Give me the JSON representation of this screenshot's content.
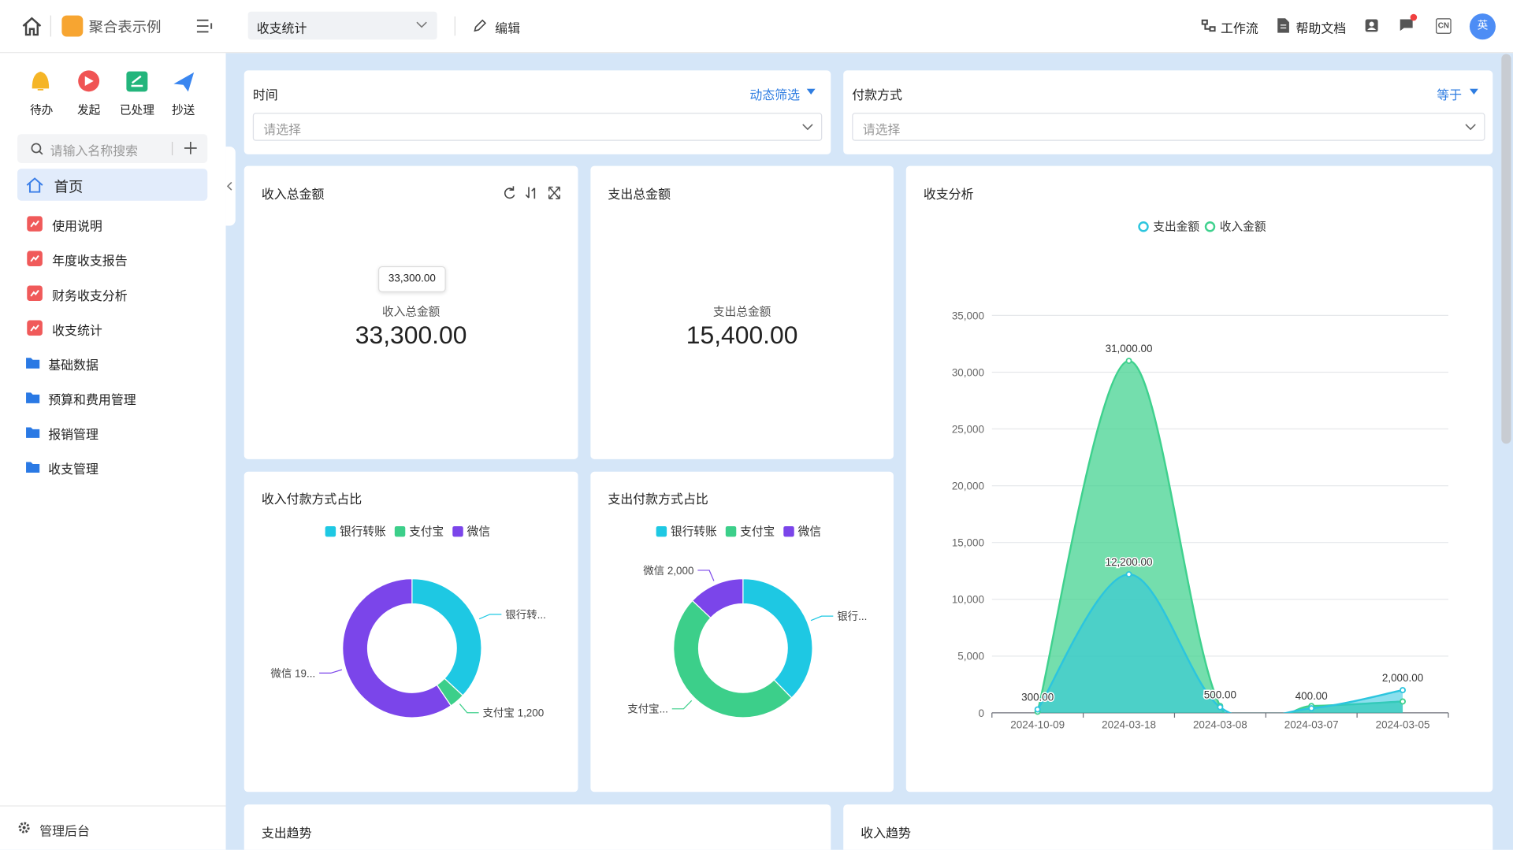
{
  "header": {
    "app_name": "聚合表示例",
    "tab": "收支统计",
    "edit": "编辑",
    "actions": [
      "工作流",
      "帮助文档"
    ],
    "lang": "CN",
    "avatar": "英"
  },
  "sidebar": {
    "quick": [
      "待办",
      "发起",
      "已处理",
      "抄送"
    ],
    "search_placeholder": "请输入名称搜索",
    "menu": [
      "首页",
      "使用说明",
      "年度收支报告",
      "财务收支分析",
      "收支统计",
      "基础数据",
      "预算和费用管理",
      "报销管理",
      "收支管理"
    ],
    "footer": "管理后台"
  },
  "filters": [
    {
      "label": "时间",
      "mode": "动态筛选",
      "placeholder": "请选择"
    },
    {
      "label": "付款方式",
      "mode": "等于",
      "placeholder": "请选择"
    }
  ],
  "kpis": [
    {
      "title": "收入总金额",
      "tooltip": "33,300.00",
      "label": "收入总金额",
      "value": "33,300.00"
    },
    {
      "title": "支出总金额",
      "label": "支出总金额",
      "value": "15,400.00"
    }
  ],
  "chart_data": [
    {
      "type": "pie",
      "donut": true,
      "title": "收入付款方式占比",
      "categories": [
        "银行转账",
        "支付宝",
        "微信"
      ],
      "colors": [
        "#1ec8e3",
        "#3ccf8a",
        "#7b45ea"
      ],
      "values": [
        12300,
        1200,
        19800
      ],
      "value_labels": [
        "银行转...",
        "支付宝 1,200",
        "微信 19..."
      ]
    },
    {
      "type": "pie",
      "donut": true,
      "title": "支出付款方式占比",
      "categories": [
        "银行转账",
        "支付宝",
        "微信"
      ],
      "colors": [
        "#1ec8e3",
        "#3ccf8a",
        "#7b45ea"
      ],
      "values": [
        5800,
        7600,
        2000
      ],
      "value_labels": [
        "银行...",
        "支付宝...",
        "微信 2,000"
      ]
    },
    {
      "type": "area",
      "smooth": true,
      "title": "收支分析",
      "categories": [
        "2024-10-09",
        "2024-03-18",
        "2024-03-08",
        "2024-03-07",
        "2024-03-05"
      ],
      "series": [
        {
          "name": "支出金额",
          "color": "#2cc5de",
          "values": [
            300,
            12200,
            500,
            400,
            2000
          ],
          "value_labels": [
            "300.00",
            "12,200.00",
            "500.00",
            "400.00",
            "2,000.00"
          ]
        },
        {
          "name": "收入金额",
          "color": "#3fd18e",
          "values": [
            100,
            31000,
            600,
            600,
            1000
          ],
          "value_labels": [
            null,
            "31,000.00",
            null,
            null,
            null
          ]
        }
      ],
      "ylim": [
        0,
        35000
      ],
      "yticks": [
        0,
        {
          "value": 5000,
          "label": "5,000"
        },
        {
          "value": 10000,
          "label": "10,000"
        },
        {
          "value": 15000,
          "label": "15,000"
        },
        {
          "value": 20000,
          "label": "20,000"
        },
        {
          "value": 25000,
          "label": "25,000"
        },
        {
          "value": 30000,
          "label": "30,000"
        },
        {
          "value": 35000,
          "label": "35,000"
        }
      ],
      "grid": true
    }
  ],
  "bottom_cards": [
    "支出趋势",
    "收入趋势"
  ]
}
